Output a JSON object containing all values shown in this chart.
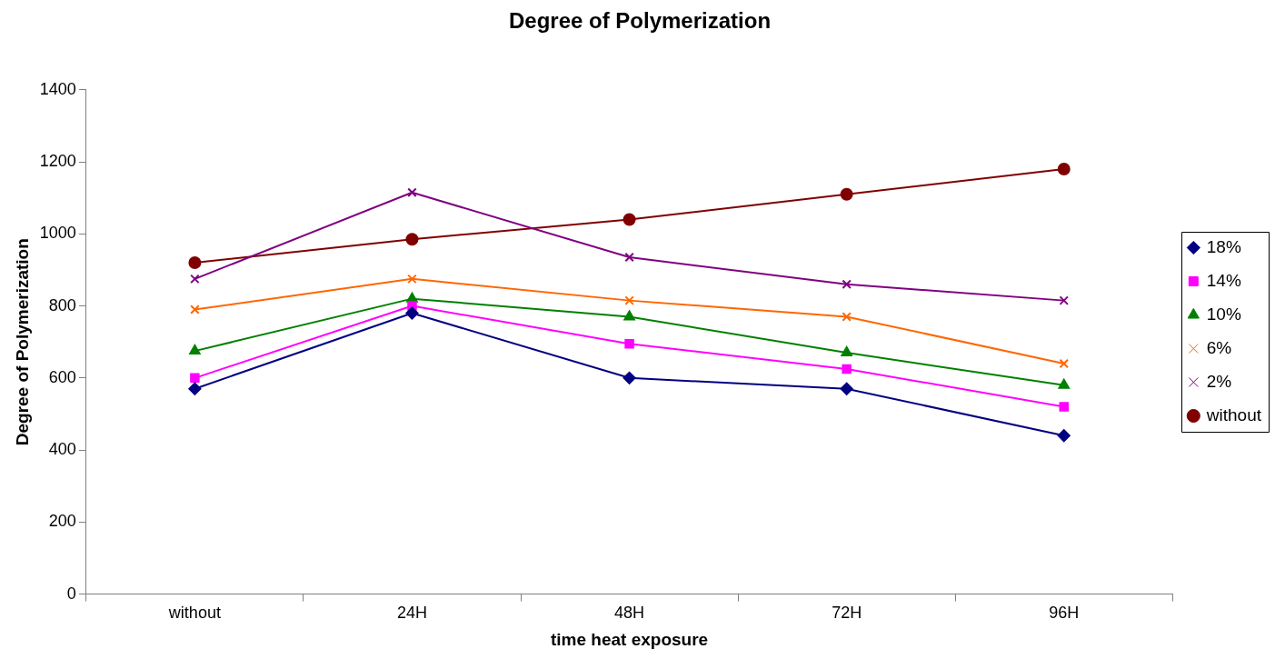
{
  "chart_data": {
    "type": "line",
    "title": "Degree of Polymerization",
    "xlabel": "time heat exposure",
    "ylabel": "Degree of Polymerization",
    "categories": [
      "without",
      "24H",
      "48H",
      "72H",
      "96H"
    ],
    "series": [
      {
        "name": "18%",
        "color": "#000080",
        "marker": "diamond",
        "values": [
          570,
          780,
          600,
          570,
          440
        ]
      },
      {
        "name": "14%",
        "color": "#ff00ff",
        "marker": "square",
        "values": [
          600,
          800,
          695,
          625,
          520
        ]
      },
      {
        "name": "10%",
        "color": "#008000",
        "marker": "triangle",
        "values": [
          675,
          820,
          770,
          670,
          580
        ]
      },
      {
        "name": "6%",
        "color": "#ff6600",
        "marker": "cross",
        "values": [
          790,
          875,
          815,
          770,
          640
        ]
      },
      {
        "name": "2%",
        "color": "#800080",
        "marker": "cross",
        "values": [
          875,
          1115,
          935,
          860,
          815
        ]
      },
      {
        "name": "without",
        "color": "#800000",
        "marker": "circle",
        "values": [
          920,
          985,
          1040,
          1110,
          1180
        ]
      }
    ],
    "ylim": [
      0,
      1400
    ],
    "yticks": [
      0,
      200,
      400,
      600,
      800,
      1000,
      1200,
      1400
    ],
    "grid": false,
    "legend": "right",
    "line_style": "solid"
  }
}
